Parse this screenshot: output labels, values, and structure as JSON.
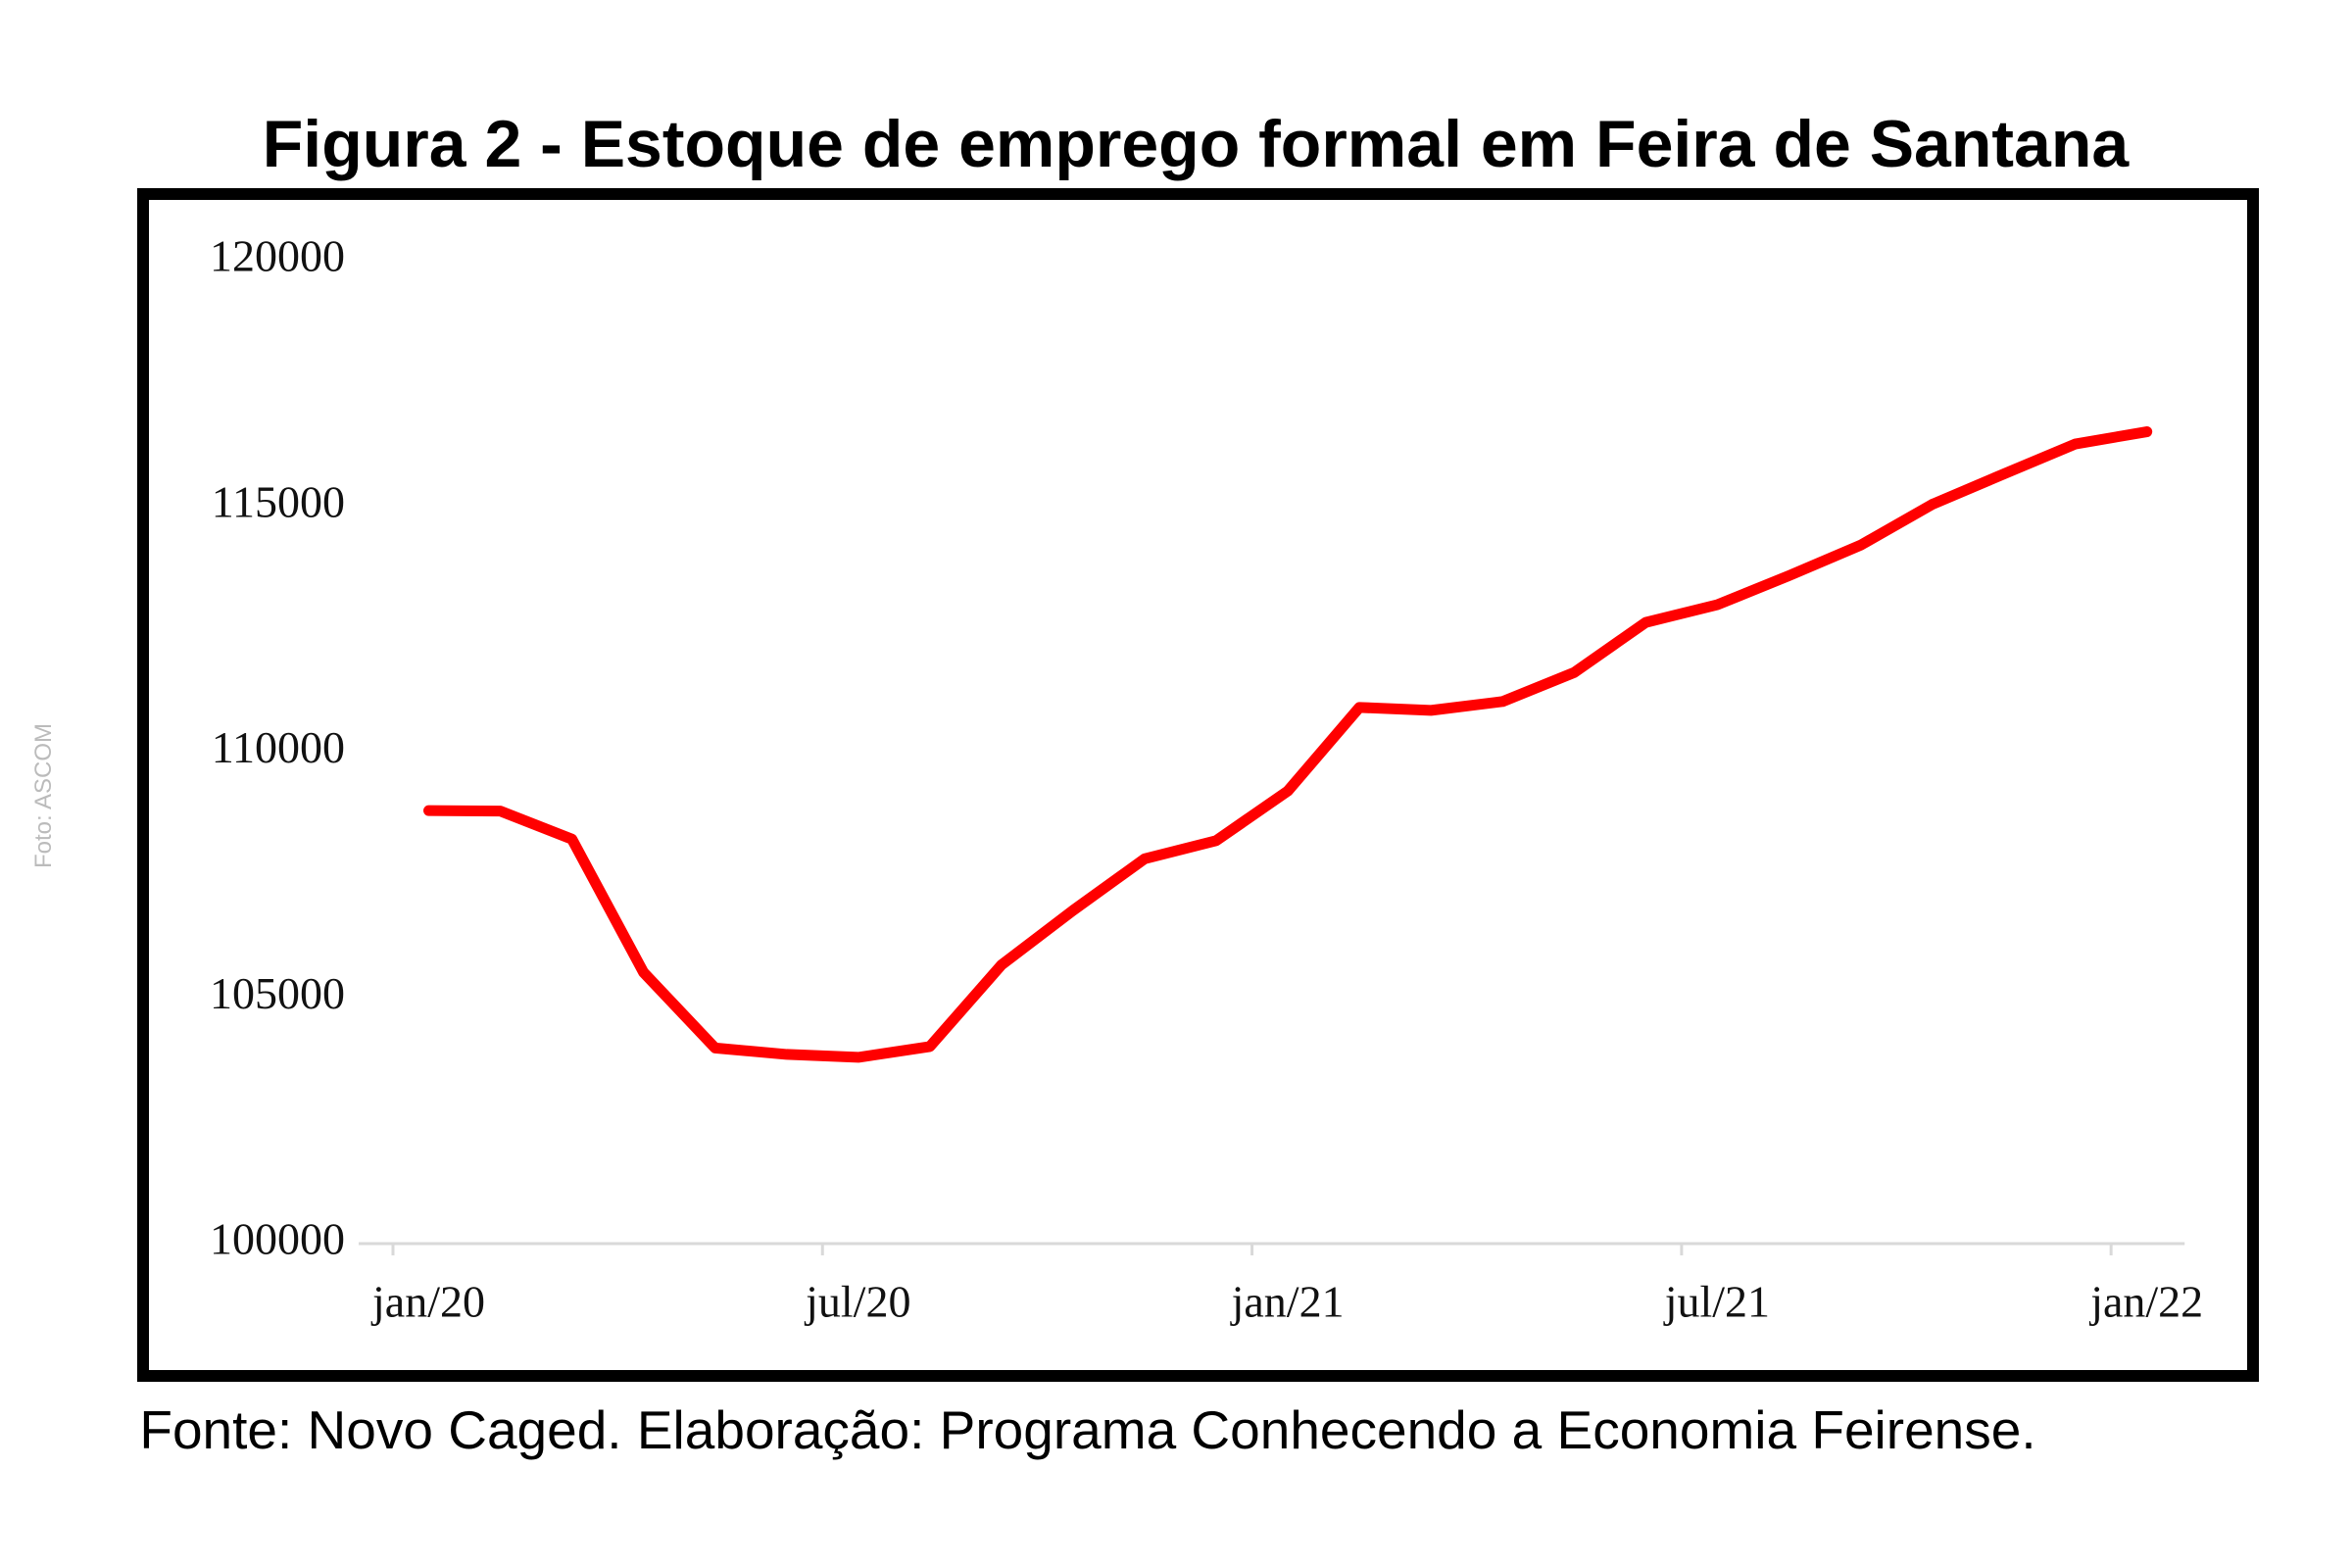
{
  "chart_data": {
    "type": "line",
    "title": "Figura 2 - Estoque de emprego formal em Feira de Santana",
    "source": "Fonte: Novo Caged. Elaboração: Programa Conhecendo a Economia Feirense.",
    "credit": "Foto: ASCOM",
    "categories": [
      "jan/20",
      null,
      null,
      null,
      null,
      null,
      "jul/20",
      null,
      null,
      null,
      null,
      null,
      "jan/21",
      null,
      null,
      null,
      null,
      null,
      "jul/21",
      null,
      null,
      null,
      null,
      null,
      "jan/22"
    ],
    "values": [
      108810,
      108800,
      108230,
      105520,
      103980,
      103850,
      103790,
      104010,
      105670,
      106780,
      107830,
      108200,
      109210,
      110910,
      110850,
      111030,
      111620,
      112640,
      113000,
      113590,
      114210,
      115040,
      115660,
      116270,
      116520
    ],
    "color": "#ff0000",
    "ylim": [
      100000,
      120000
    ],
    "yticks": [
      100000,
      105000,
      110000,
      115000,
      120000
    ],
    "grid": false
  }
}
